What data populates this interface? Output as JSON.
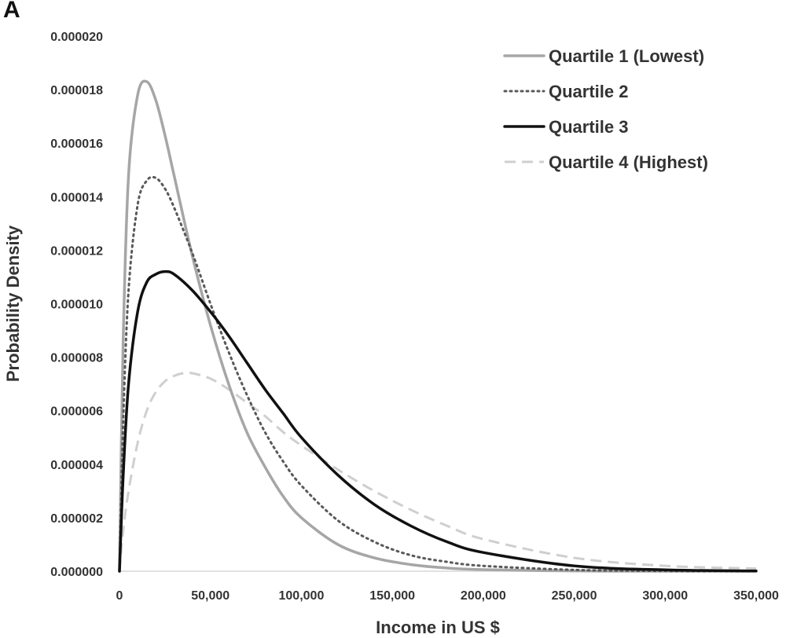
{
  "panel_label": "A",
  "chart_data": {
    "type": "line",
    "xlabel": "Income in US $",
    "ylabel": "Probability Density",
    "xlim": [
      0,
      350000
    ],
    "ylim": [
      0,
      2e-05
    ],
    "x_ticks": [
      "0",
      "50,000",
      "100,000",
      "150,000",
      "200,000",
      "250,000",
      "300,000",
      "350,000"
    ],
    "y_ticks": [
      "0.000000",
      "0.000002",
      "0.000004",
      "0.000006",
      "0.000008",
      "0.000010",
      "0.000012",
      "0.000014",
      "0.000016",
      "0.000018",
      "0.000020"
    ],
    "grid": false,
    "legend_position": "top-right",
    "series": [
      {
        "name": "Quartile 1 (Lowest)",
        "color": "#a6a6a6",
        "style": "solid",
        "x": [
          0,
          2000,
          5000,
          10000,
          15000,
          20000,
          25000,
          30000,
          40000,
          50000,
          60000,
          70000,
          80000,
          90000,
          100000,
          120000,
          140000,
          160000,
          180000,
          200000,
          250000,
          300000,
          350000
        ],
        "values": [
          0,
          8.5e-06,
          1.48e-05,
          1.78e-05,
          1.83e-05,
          1.76e-05,
          1.63e-05,
          1.48e-05,
          1.18e-05,
          9.2e-06,
          7e-06,
          5.2e-06,
          3.9e-06,
          2.8e-06,
          2e-06,
          1e-06,
          5e-07,
          2.5e-07,
          1.2e-07,
          6e-08,
          1e-08,
          0,
          0
        ]
      },
      {
        "name": "Quartile 2",
        "color": "#595959",
        "style": "dotted",
        "x": [
          0,
          2000,
          5000,
          10000,
          15000,
          20000,
          25000,
          30000,
          40000,
          50000,
          60000,
          70000,
          80000,
          90000,
          100000,
          120000,
          140000,
          160000,
          180000,
          200000,
          250000,
          300000,
          350000
        ],
        "values": [
          0,
          5.5e-06,
          1.05e-05,
          1.37e-05,
          1.46e-05,
          1.47e-05,
          1.43e-05,
          1.36e-05,
          1.19e-05,
          1e-05,
          8.2e-06,
          6.6e-06,
          5.2e-06,
          4.1e-06,
          3.2e-06,
          1.9e-06,
          1.1e-06,
          6e-07,
          3.5e-07,
          2e-07,
          5e-08,
          1e-08,
          0
        ]
      },
      {
        "name": "Quartile 3",
        "color": "#111111",
        "style": "solid",
        "x": [
          0,
          2000,
          5000,
          10000,
          15000,
          20000,
          25000,
          30000,
          40000,
          50000,
          60000,
          70000,
          80000,
          90000,
          100000,
          120000,
          140000,
          160000,
          180000,
          200000,
          250000,
          300000,
          350000
        ],
        "values": [
          0,
          3.5e-06,
          7e-06,
          9.7e-06,
          1.08e-05,
          1.11e-05,
          1.12e-05,
          1.11e-05,
          1.05e-05,
          9.7e-06,
          8.8e-06,
          7.8e-06,
          6.8e-06,
          5.9e-06,
          5e-06,
          3.6e-06,
          2.5e-06,
          1.7e-06,
          1.1e-06,
          7e-07,
          2e-07,
          5e-08,
          1e-08
        ]
      },
      {
        "name": "Quartile 4 (Highest)",
        "color": "#cfcfcf",
        "style": "dashed",
        "x": [
          0,
          2000,
          5000,
          10000,
          15000,
          20000,
          25000,
          30000,
          35000,
          40000,
          50000,
          60000,
          70000,
          80000,
          90000,
          100000,
          120000,
          140000,
          160000,
          180000,
          200000,
          250000,
          300000,
          350000
        ],
        "values": [
          0,
          1.5e-06,
          3e-06,
          4.8e-06,
          6e-06,
          6.7e-06,
          7.1e-06,
          7.3e-06,
          7.4e-06,
          7.4e-06,
          7.2e-06,
          6.8e-06,
          6.3e-06,
          5.8e-06,
          5.2e-06,
          4.7e-06,
          3.8e-06,
          3e-06,
          2.3e-06,
          1.7e-06,
          1.2e-06,
          5e-07,
          2e-07,
          1e-07
        ]
      }
    ]
  }
}
